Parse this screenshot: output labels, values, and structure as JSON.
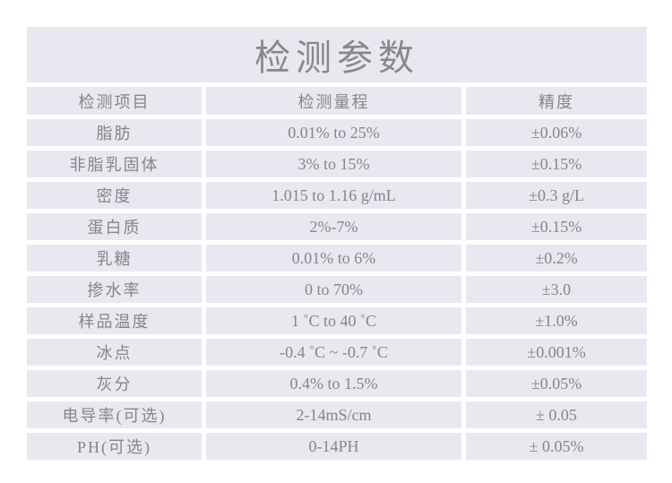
{
  "title": "检测参数",
  "colors": {
    "cell_bg": "#e8e8f1",
    "text": "#85858b",
    "page_bg": "#ffffff"
  },
  "table": {
    "headers": [
      "检测项目",
      "检测量程",
      "精度"
    ],
    "rows": [
      {
        "item": "脂肪",
        "range": "0.01% to 25%",
        "precision": "±0.06%"
      },
      {
        "item": "非脂乳固体",
        "range": "3% to 15%",
        "precision": "±0.15%"
      },
      {
        "item": "密度",
        "range": "1.015 to 1.16 g/mL",
        "precision": "±0.3 g/L"
      },
      {
        "item": "蛋白质",
        "range": "2%-7%",
        "precision": "±0.15%"
      },
      {
        "item": "乳糖",
        "range": "0.01% to 6%",
        "precision": "±0.2%"
      },
      {
        "item": "掺水率",
        "range": "0 to 70%",
        "precision": "±3.0"
      },
      {
        "item": "样品温度",
        "range": "1 ˚C to 40 ˚C",
        "precision": "±1.0%"
      },
      {
        "item": "冰点",
        "range": "-0.4 ˚C ~ -0.7 ˚C",
        "precision": "±0.001%"
      },
      {
        "item": "灰分",
        "range": "0.4% to 1.5%",
        "precision": "±0.05%"
      },
      {
        "item": "电导率(可选)",
        "range": "2-14mS/cm",
        "precision": "± 0.05"
      },
      {
        "item": "PH(可选)",
        "range": "0-14PH",
        "precision": "± 0.05%"
      }
    ]
  }
}
